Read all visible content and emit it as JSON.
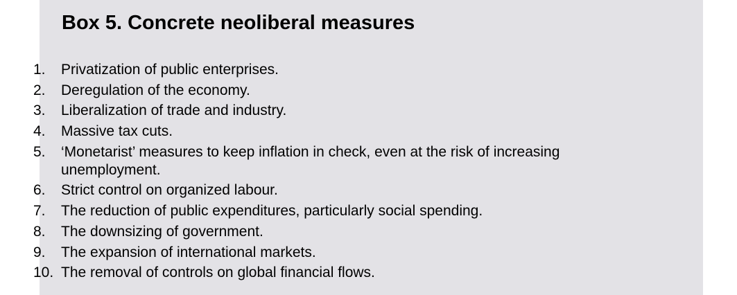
{
  "box": {
    "title": "Box 5. Concrete neoliberal measures",
    "items": [
      {
        "number": "1.",
        "text": "Privatization of public enterprises."
      },
      {
        "number": "2.",
        "text": "Deregulation of the economy."
      },
      {
        "number": "3.",
        "text": "Liberalization of trade and industry."
      },
      {
        "number": "4.",
        "text": "Massive tax cuts."
      },
      {
        "number": "5.",
        "text": "‘Monetarist’ measures to keep inflation in check, even at the risk of increasing unemployment."
      },
      {
        "number": "6.",
        "text": "Strict control on organized labour."
      },
      {
        "number": "7.",
        "text": "The reduction of public expenditures, particularly social spending."
      },
      {
        "number": "8.",
        "text": "The downsizing of government."
      },
      {
        "number": "9.",
        "text": "The expansion of international markets."
      },
      {
        "number": "10.",
        "text": "The removal of controls on global financial flows."
      }
    ]
  },
  "colors": {
    "box_background": "#e3e2e6",
    "text": "#000000"
  }
}
